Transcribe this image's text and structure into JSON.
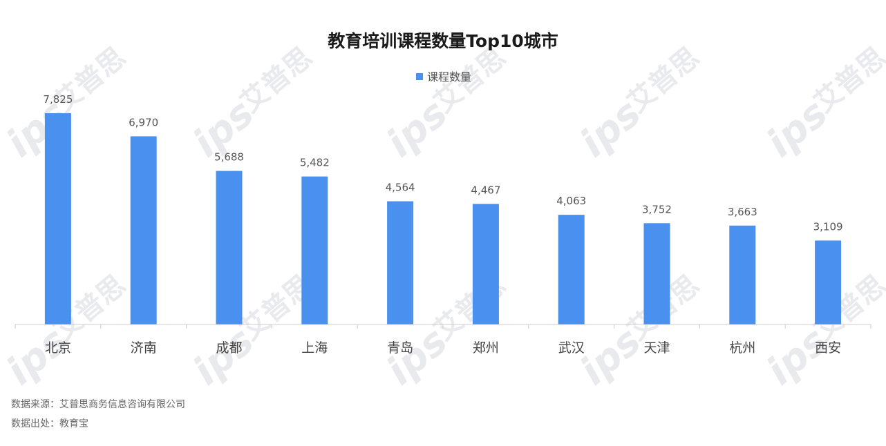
{
  "chart_data": {
    "type": "bar",
    "title": "教育培训课程数量Top10城市",
    "legend": {
      "label": "课程数量",
      "position": "top-center"
    },
    "categories": [
      "北京",
      "济南",
      "成都",
      "上海",
      "青岛",
      "郑州",
      "武汉",
      "天津",
      "杭州",
      "西安"
    ],
    "series": [
      {
        "name": "课程数量",
        "values": [
          7825,
          6970,
          5688,
          5482,
          4564,
          4467,
          4063,
          3752,
          3663,
          3109
        ]
      }
    ],
    "data_labels": [
      "7,825",
      "6,970",
      "5,688",
      "5,482",
      "4,564",
      "4,467",
      "4,063",
      "3,752",
      "3,663",
      "3,109"
    ],
    "ylim": [
      0,
      7825
    ],
    "grid": false,
    "bar_color": "#4a90ee"
  },
  "footer": {
    "source": "数据来源：艾普思商务信息咨询有限公司",
    "origin": "数据出处：教育宝"
  },
  "watermark": {
    "cn": "艾普思",
    "en": "ips"
  }
}
